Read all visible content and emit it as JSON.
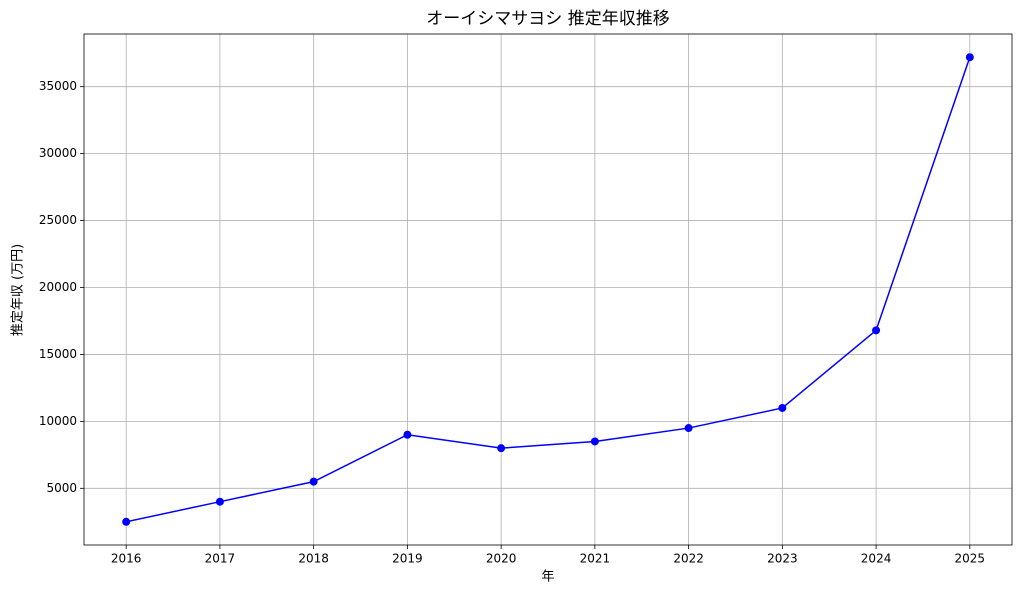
{
  "chart_data": {
    "type": "line",
    "title": "オーイシマサヨシ 推定年収推移",
    "xlabel": "年",
    "ylabel": "推定年収 (万円)",
    "x": [
      2016,
      2017,
      2018,
      2019,
      2020,
      2021,
      2022,
      2023,
      2024,
      2025
    ],
    "series": [
      {
        "name": "推定年収",
        "color": "#0000ff",
        "values": [
          2500,
          4000,
          5500,
          9000,
          8000,
          8500,
          9500,
          11000,
          16800,
          37200
        ]
      }
    ],
    "xlim": [
      2015.55,
      2025.45
    ],
    "xticks": [
      2016,
      2017,
      2018,
      2019,
      2020,
      2021,
      2022,
      2023,
      2024,
      2025
    ],
    "ylim": [
      765,
      38935
    ],
    "yticks": [
      5000,
      10000,
      15000,
      20000,
      25000,
      30000,
      35000
    ],
    "grid": true,
    "marker": "circle"
  }
}
